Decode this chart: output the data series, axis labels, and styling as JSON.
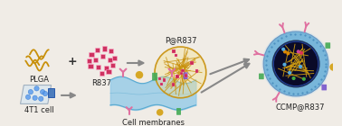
{
  "bg_color": "#f0ece6",
  "labels": {
    "plga": "PLGA",
    "r837": "R837",
    "p_r837": "P@R837",
    "cell": "4T1 cell",
    "membranes": "Cell membranes",
    "ccmp": "CCMP@R837"
  },
  "label_fontsize": 6.0,
  "arrow_color": "#888888",
  "plga_color": "#c8900a",
  "r837_color": "#cc2255",
  "nanoparticle_gold": "#c8900a",
  "membrane_color": "#8ec8e8",
  "membrane_dark": "#5aaad0",
  "ccmp_blue": "#6ab0d8",
  "ccmp_dark": "#6090c0",
  "ccmp_inner": "#0a0a28",
  "plus_color": "#333333"
}
